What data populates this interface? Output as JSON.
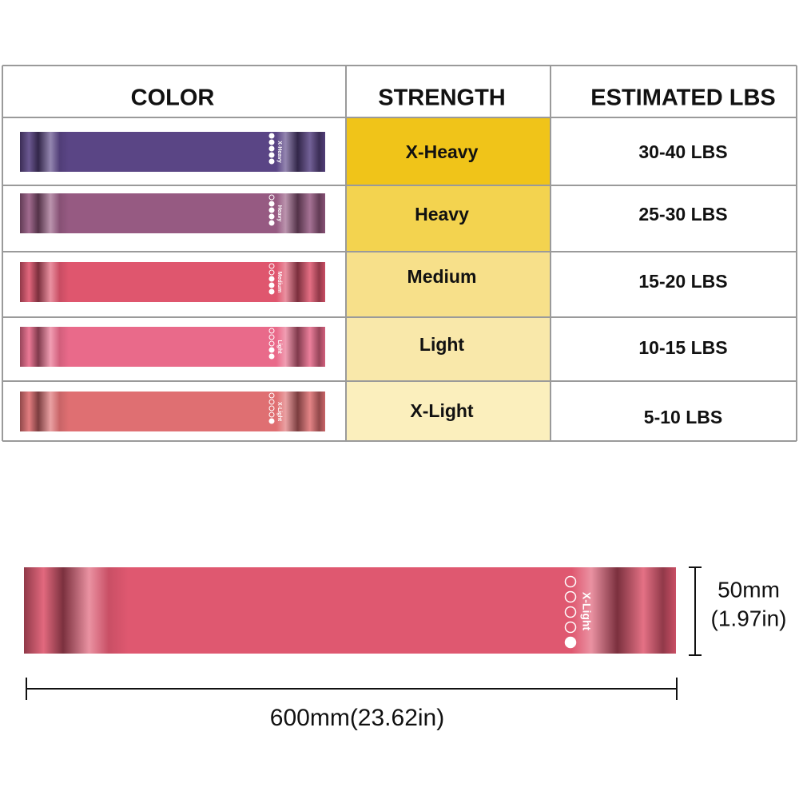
{
  "header": {
    "color": "COLOR",
    "strength": "STRENGTH",
    "lbs": "ESTIMATED LBS"
  },
  "rows": [
    {
      "band_label": "X-Heavy",
      "strength": "X-Heavy",
      "lbs": "30-40 LBS"
    },
    {
      "band_label": "Heavy",
      "strength": "Heavy",
      "lbs": "25-30 LBS"
    },
    {
      "band_label": "Medium",
      "strength": "Medium",
      "lbs": "15-20 LBS"
    },
    {
      "band_label": "Light",
      "strength": "Light",
      "lbs": "10-15 LBS"
    },
    {
      "band_label": "X-Light",
      "strength": "X-Light",
      "lbs": "5-10 LBS"
    }
  ],
  "sample": {
    "band_label": "X-Light",
    "height": "50mm",
    "height_in": "(1.97in)",
    "length": "600mm(23.62in)"
  }
}
